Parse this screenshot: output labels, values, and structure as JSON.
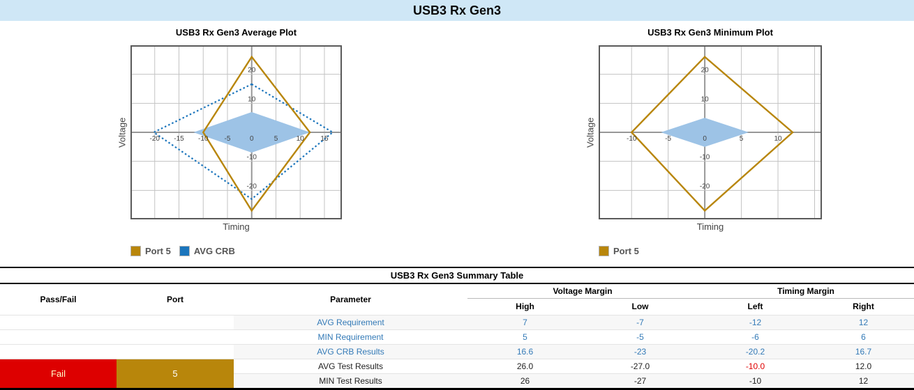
{
  "page": {
    "title": "USB3 Rx Gen3"
  },
  "chart_data": [
    {
      "type": "area",
      "title": "USB3 Rx Gen3 Average Plot",
      "xlabel": "Timing",
      "ylabel": "Voltage",
      "x_range": [
        -25,
        18.6
      ],
      "y_range": [
        -30,
        30
      ],
      "x_grid_step": 5,
      "y_grid_step": 10,
      "x_tick_labels": [
        -20,
        -15,
        -10,
        -5,
        0,
        5,
        10,
        15
      ],
      "y_tick_labels": [
        20,
        10,
        -10,
        -20
      ],
      "grid": true,
      "legend_position": "bottom-left",
      "series": [
        {
          "name": "AVG Requirement",
          "style": "filled-diamond",
          "color": "#9dc3e6",
          "diamond": {
            "top": 7,
            "right": 12,
            "bottom": -7,
            "left": -12
          }
        },
        {
          "name": "AVG CRB",
          "style": "dotted-diamond",
          "color": "#1b75bc",
          "diamond": {
            "top": 16.6,
            "right": 16.7,
            "bottom": -23,
            "left": -20.2
          }
        },
        {
          "name": "Port 5",
          "style": "solid-diamond",
          "color": "#b8860b",
          "diamond": {
            "top": 26.0,
            "right": 12.0,
            "bottom": -27.0,
            "left": -10.0
          }
        }
      ],
      "legend": [
        {
          "label": "Port 5",
          "color": "#b8860b"
        },
        {
          "label": "AVG CRB",
          "color": "#1b75bc"
        }
      ]
    },
    {
      "type": "area",
      "title": "USB3 Rx Gen3 Minimum Plot",
      "xlabel": "Timing",
      "ylabel": "Voltage",
      "x_range": [
        -14.5,
        16
      ],
      "y_range": [
        -30,
        30
      ],
      "x_grid_step": 5,
      "y_grid_step": 10,
      "x_tick_labels": [
        -10,
        -5,
        0,
        5,
        10
      ],
      "y_tick_labels": [
        20,
        10,
        -10,
        -20
      ],
      "grid": true,
      "legend_position": "bottom-left",
      "series": [
        {
          "name": "MIN Requirement",
          "style": "filled-diamond",
          "color": "#9dc3e6",
          "diamond": {
            "top": 5,
            "right": 6,
            "bottom": -5,
            "left": -6
          }
        },
        {
          "name": "Port 5",
          "style": "solid-diamond",
          "color": "#b8860b",
          "diamond": {
            "top": 26,
            "right": 12,
            "bottom": -27,
            "left": -10
          }
        }
      ],
      "legend": [
        {
          "label": "Port 5",
          "color": "#b8860b"
        }
      ]
    }
  ],
  "table": {
    "title": "USB3 Rx Gen3 Summary Table",
    "columns": {
      "pass_fail": "Pass/Fail",
      "port": "Port",
      "parameter": "Parameter"
    },
    "groups": [
      {
        "label": "Voltage Margin",
        "children": [
          "High",
          "Low"
        ]
      },
      {
        "label": "Timing Margin",
        "children": [
          "Left",
          "Right"
        ]
      }
    ],
    "rows": [
      {
        "parameter": "AVG Requirement",
        "values": [
          "7",
          "-7",
          "-12",
          "12"
        ],
        "link_style": true
      },
      {
        "parameter": "MIN Requirement",
        "values": [
          "5",
          "-5",
          "-6",
          "6"
        ],
        "link_style": true
      },
      {
        "parameter": "AVG CRB Results",
        "values": [
          "16.6",
          "-23",
          "-20.2",
          "16.7"
        ],
        "link_style": true
      },
      {
        "parameter": "AVG Test Results",
        "values": [
          "26.0",
          "-27.0",
          "-10.0",
          "12.0"
        ],
        "fail_value_indexes": [
          2
        ]
      },
      {
        "parameter": "MIN Test Results",
        "values": [
          "26",
          "-27",
          "-10",
          "12"
        ]
      }
    ],
    "result": {
      "pass_fail": "Fail",
      "port": "5",
      "fail_bg": "#dd0000",
      "port_bg": "#b8860b"
    }
  }
}
